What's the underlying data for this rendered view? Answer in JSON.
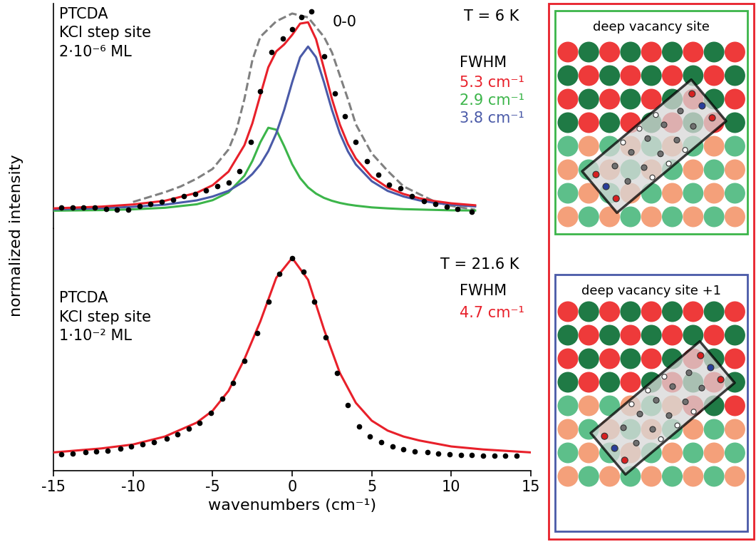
{
  "chart_data": [
    {
      "type": "line",
      "xlim": [
        -15,
        15
      ],
      "ylim": [
        -0.085,
        1.07
      ],
      "yticks": [],
      "tick_labels": false,
      "series": [
        {
          "color": "#808080",
          "line_style": "dashed",
          "marker": "none",
          "x": [
            -10,
            -9,
            -8,
            -7,
            -6,
            -5,
            -4,
            -3.5,
            -3,
            -2.5,
            -2,
            -1,
            0,
            1,
            2,
            2.5,
            3,
            3.5,
            4,
            5,
            6,
            7,
            8,
            9,
            10,
            11.5
          ],
          "values": [
            0.05,
            0.075,
            0.1,
            0.13,
            0.17,
            0.22,
            0.32,
            0.42,
            0.58,
            0.78,
            0.9,
            0.98,
            1.02,
            1.0,
            0.9,
            0.82,
            0.7,
            0.58,
            0.45,
            0.3,
            0.21,
            0.13,
            0.09,
            0.05,
            0.03,
            0.01
          ]
        },
        {
          "color": "#3cb54a",
          "line_style": "solid",
          "marker": "none",
          "x": [
            -15,
            -12,
            -10,
            -8,
            -6,
            -5,
            -4,
            -3,
            -2.5,
            -2,
            -1.5,
            -1,
            -0.5,
            0,
            0.5,
            1,
            1.5,
            2,
            2.5,
            3,
            3.5,
            4,
            5,
            6,
            7,
            8,
            9,
            10,
            11.5
          ],
          "values": [
            0.005,
            0.008,
            0.012,
            0.02,
            0.038,
            0.059,
            0.099,
            0.185,
            0.261,
            0.357,
            0.432,
            0.422,
            0.337,
            0.244,
            0.173,
            0.125,
            0.093,
            0.071,
            0.056,
            0.045,
            0.037,
            0.031,
            0.022,
            0.017,
            0.013,
            0.011,
            0.009,
            0.007,
            0.006
          ]
        },
        {
          "color": "#4a5aa8",
          "line_style": "solid",
          "marker": "none",
          "x": [
            -15,
            -12,
            -10,
            -8,
            -6,
            -5,
            -4,
            -3,
            -2.5,
            -2,
            -1.5,
            -1,
            -0.5,
            0,
            0.5,
            1,
            1.5,
            2,
            2.5,
            3,
            3.5,
            4,
            5,
            6,
            7,
            8,
            9,
            10,
            11.5
          ],
          "values": [
            0.012,
            0.018,
            0.025,
            0.036,
            0.058,
            0.078,
            0.107,
            0.157,
            0.194,
            0.243,
            0.311,
            0.403,
            0.524,
            0.666,
            0.795,
            0.85,
            0.795,
            0.666,
            0.524,
            0.403,
            0.311,
            0.243,
            0.157,
            0.107,
            0.078,
            0.058,
            0.045,
            0.036,
            0.027
          ]
        },
        {
          "color": "#e8202a",
          "line_style": "solid",
          "marker": "none",
          "x": [
            -15,
            -12,
            -10,
            -8,
            -6,
            -5,
            -4,
            -3,
            -2.5,
            -2,
            -1.5,
            -1,
            -0.5,
            0,
            0.5,
            1,
            1.5,
            2,
            2.5,
            3,
            3.5,
            4,
            5,
            6,
            7,
            8,
            9,
            10,
            11.5
          ],
          "values": [
            0.017,
            0.026,
            0.037,
            0.056,
            0.097,
            0.136,
            0.206,
            0.342,
            0.455,
            0.6,
            0.743,
            0.825,
            0.861,
            0.91,
            0.968,
            0.975,
            0.888,
            0.737,
            0.58,
            0.448,
            0.348,
            0.274,
            0.179,
            0.124,
            0.091,
            0.069,
            0.054,
            0.043,
            0.033
          ]
        },
        {
          "color": "#000000",
          "line_style": "none",
          "marker": "circle",
          "x": [
            -14.5,
            -13.8,
            -13.1,
            -12.4,
            -11.7,
            -11.0,
            -10.3,
            -9.6,
            -8.9,
            -8.2,
            -7.5,
            -6.8,
            -6.1,
            -5.4,
            -4.7,
            -4.0,
            -3.3,
            -2.6,
            -2.0,
            -1.3,
            -0.6,
            0.0,
            0.6,
            1.2,
            2.0,
            2.7,
            3.3,
            4.0,
            4.7,
            5.4,
            6.1,
            6.8,
            7.5,
            8.3,
            9.0,
            9.7,
            10.4,
            11.3
          ],
          "values": [
            0.02,
            0.02,
            0.02,
            0.02,
            0.015,
            0.01,
            0.01,
            0.03,
            0.04,
            0.05,
            0.06,
            0.08,
            0.09,
            0.11,
            0.13,
            0.15,
            0.21,
            0.36,
            0.62,
            0.82,
            0.89,
            0.94,
            1.0,
            1.03,
            0.8,
            0.61,
            0.49,
            0.36,
            0.26,
            0.19,
            0.14,
            0.12,
            0.08,
            0.055,
            0.04,
            0.025,
            0.015,
            0.0
          ]
        }
      ],
      "annotations": [
        {
          "text": "PTCDA\nKCl step site\n2·10⁻⁶ ML",
          "color": "#000000"
        },
        {
          "text": "0-0",
          "color": "#000000"
        },
        {
          "text": "T = 6 K",
          "color": "#000000"
        },
        {
          "text": "FWHM",
          "color": "#000000"
        },
        {
          "text": "5.3 cm⁻¹",
          "color": "#e8202a"
        },
        {
          "text": "2.9 cm⁻¹",
          "color": "#3cb54a"
        },
        {
          "text": "3.8 cm⁻¹",
          "color": "#4a5aa8"
        }
      ]
    },
    {
      "type": "line",
      "x_label": "wavenumbers (cm⁻¹)",
      "y_label": "normalized intensity",
      "xlim": [
        -15,
        15
      ],
      "xticks": [
        -15,
        -10,
        -5,
        0,
        5,
        10,
        15
      ],
      "ylim": [
        -0.072,
        1.15
      ],
      "yticks": [],
      "tick_labels": "x",
      "series": [
        {
          "color": "#e8202a",
          "line_style": "solid",
          "marker": "none",
          "x": [
            -15,
            -12,
            -10,
            -8,
            -6,
            -5,
            -4,
            -3,
            -2,
            -1,
            0,
            1,
            2,
            3,
            4,
            5,
            6,
            7,
            8,
            10,
            12,
            15
          ],
          "values": [
            0.02,
            0.04,
            0.06,
            0.1,
            0.17,
            0.23,
            0.33,
            0.49,
            0.68,
            0.9,
            1.0,
            0.89,
            0.64,
            0.42,
            0.27,
            0.18,
            0.13,
            0.1,
            0.08,
            0.05,
            0.035,
            0.02
          ]
        },
        {
          "color": "#000000",
          "line_style": "none",
          "marker": "circle",
          "x": [
            -14.5,
            -13.8,
            -13.0,
            -12.3,
            -11.6,
            -10.8,
            -10.1,
            -9.4,
            -8.7,
            -7.9,
            -7.2,
            -6.5,
            -5.8,
            -5.1,
            -4.4,
            -3.7,
            -3.0,
            -2.2,
            -1.5,
            -0.8,
            0.0,
            0.7,
            1.4,
            2.1,
            2.8,
            3.5,
            4.2,
            4.9,
            5.6,
            6.3,
            7.0,
            7.7,
            8.5,
            9.2,
            9.9,
            10.6,
            11.3,
            12.0,
            12.7,
            13.4,
            14.1
          ],
          "values": [
            0.01,
            0.015,
            0.02,
            0.025,
            0.03,
            0.04,
            0.05,
            0.06,
            0.07,
            0.09,
            0.11,
            0.14,
            0.17,
            0.22,
            0.29,
            0.37,
            0.48,
            0.62,
            0.78,
            0.92,
            1.0,
            0.93,
            0.78,
            0.6,
            0.42,
            0.26,
            0.15,
            0.1,
            0.07,
            0.05,
            0.035,
            0.025,
            0.02,
            0.015,
            0.01,
            0.008,
            0.006,
            0.005,
            0.004,
            0.003,
            0.002
          ]
        }
      ],
      "annotations": [
        {
          "text": "PTCDA\nKCl step site\n1·10⁻² ML",
          "color": "#000000"
        },
        {
          "text": "T = 21.6 K",
          "color": "#000000"
        },
        {
          "text": "FWHM",
          "color": "#000000"
        },
        {
          "text": "4.7 cm⁻¹",
          "color": "#e8202a"
        }
      ]
    }
  ],
  "diagram": {
    "frame_color": "#e8202a",
    "panels": [
      {
        "title": "deep vacancy site",
        "color": "#3cb54a"
      },
      {
        "title": "deep vacancy site +1",
        "color": "#4a5aa8"
      }
    ]
  }
}
